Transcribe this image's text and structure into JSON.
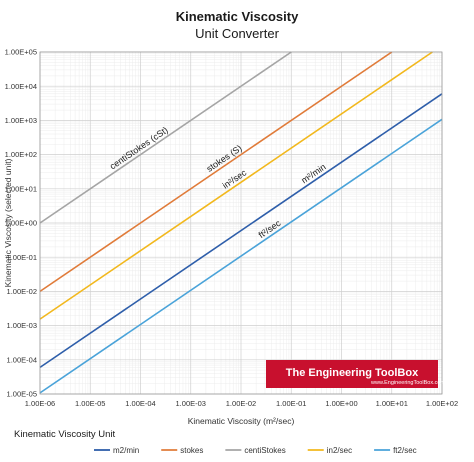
{
  "chart_data": {
    "type": "line",
    "title": "Kinematic Viscosity",
    "subtitle": "Unit Converter",
    "xlabel": "Kinematic Viscosity (m²/sec)",
    "ylabel": "Kinematic Viscosity (selected unit)",
    "xscale": "log",
    "yscale": "log",
    "xlim": [
      1e-06,
      100
    ],
    "ylim": [
      1e-05,
      100000.0
    ],
    "x_ticks": [
      "1.00E-06",
      "1.00E-05",
      "1.00E-04",
      "1.00E-03",
      "1.00E-02",
      "1.00E-01",
      "1.00E+00",
      "1.00E+01",
      "1.00E+02"
    ],
    "y_ticks": [
      "1.00E-05",
      "1.00E-04",
      "1.00E-03",
      "1.00E-02",
      "1.00E-01",
      "1.00E+00",
      "1.00E+01",
      "1.00E+02",
      "1.00E+03",
      "1.00E+04",
      "1.00E+05"
    ],
    "grid": true,
    "legend": {
      "title": "Kinematic Viscosity Unit",
      "placement": "bottom"
    },
    "series": [
      {
        "name": "m2/min",
        "color": "#2e5eaa",
        "x": [
          1e-06,
          100
        ],
        "y": [
          6e-05,
          6000
        ],
        "label": "m²/min"
      },
      {
        "name": "stokes",
        "color": "#e07b39",
        "x": [
          1e-06,
          10
        ],
        "y": [
          0.01,
          100000
        ],
        "label": "stokes (S)"
      },
      {
        "name": "centiStokes",
        "color": "#a5a5a5",
        "x": [
          1e-06,
          0.1
        ],
        "y": [
          1,
          100000
        ],
        "label": "centiStokes (cSt)"
      },
      {
        "name": "in2/sec",
        "color": "#f2b81d",
        "x": [
          1e-06,
          64.516
        ],
        "y": [
          0.00155,
          100000
        ],
        "label": "in²/sec"
      },
      {
        "name": "ft2/sec",
        "color": "#4aa3d9",
        "x": [
          1e-06,
          100
        ],
        "y": [
          1.0764e-05,
          1076.4
        ],
        "label": "ft²/sec"
      }
    ]
  },
  "watermark": {
    "text": "The Engineering ToolBox",
    "url": "www.EngineeringToolBox.com",
    "color": "#c8102e"
  }
}
